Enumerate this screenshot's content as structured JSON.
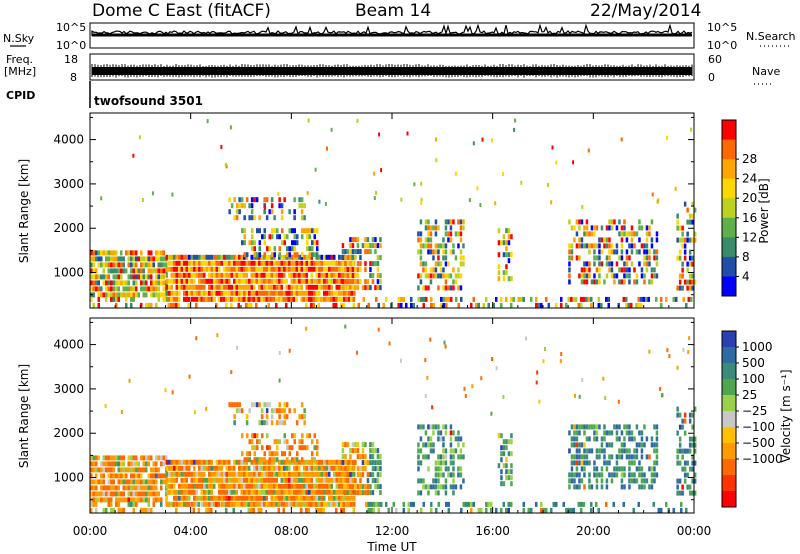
{
  "header": {
    "station": "Dome C East (fitACF)",
    "beam": "Beam 14",
    "date": "22/May/2014"
  },
  "top_panels": {
    "nsky_label": "N.Sky",
    "nsearch_label": "N.Search",
    "noise_ticks_left": [
      "10^5",
      "10^0"
    ],
    "noise_ticks_right": [
      "10^5",
      "10^0"
    ],
    "freq_label_1": "Freq.",
    "freq_label_2": "[MHz]",
    "freq_ticks": [
      "18",
      "8"
    ],
    "nave_label": "Nave",
    "nave_ticks": [
      "60",
      "0"
    ],
    "cpid_label": "CPID",
    "cpid_value": "twofsound 3501"
  },
  "chart_data": [
    {
      "type": "heatmap",
      "name": "power",
      "ylabel": "Slant Range [km]",
      "yticks": [
        "1000",
        "2000",
        "3000",
        "4000"
      ],
      "ylim": [
        200,
        4600
      ],
      "xlim": [
        0,
        24
      ],
      "colorbar_label": "Power [dB]",
      "colorbar_ticks": [
        "4",
        "8",
        "12",
        "16",
        "20",
        "24",
        "28"
      ],
      "colors": [
        "#0000ff",
        "#1f4fa8",
        "#3a8a6c",
        "#5fb04a",
        "#bcd21f",
        "#ffd700",
        "#ffa500",
        "#ff6a00",
        "#ff0000"
      ]
    },
    {
      "type": "heatmap",
      "name": "velocity",
      "ylabel": "Slant Range [km]",
      "yticks": [
        "1000",
        "2000",
        "3000",
        "4000"
      ],
      "ylim": [
        200,
        4600
      ],
      "xlim": [
        0,
        24
      ],
      "xlabel": "Time UT",
      "xticks": [
        "00:00",
        "04:00",
        "08:00",
        "12:00",
        "16:00",
        "20:00",
        "00:00"
      ],
      "colorbar_label": "Velocity [m s⁻¹]",
      "colorbar_ticks": [
        "1000",
        "500",
        "100",
        "25",
        "−25",
        "−100",
        "−500",
        "−1000"
      ],
      "colors": [
        "#2a3fb0",
        "#2f6aa0",
        "#3a8c78",
        "#4fa64f",
        "#9ad04a",
        "#c8c8c8",
        "#ffc000",
        "#ff9a00",
        "#ff6a00",
        "#ff3300",
        "#ff0000"
      ]
    }
  ]
}
